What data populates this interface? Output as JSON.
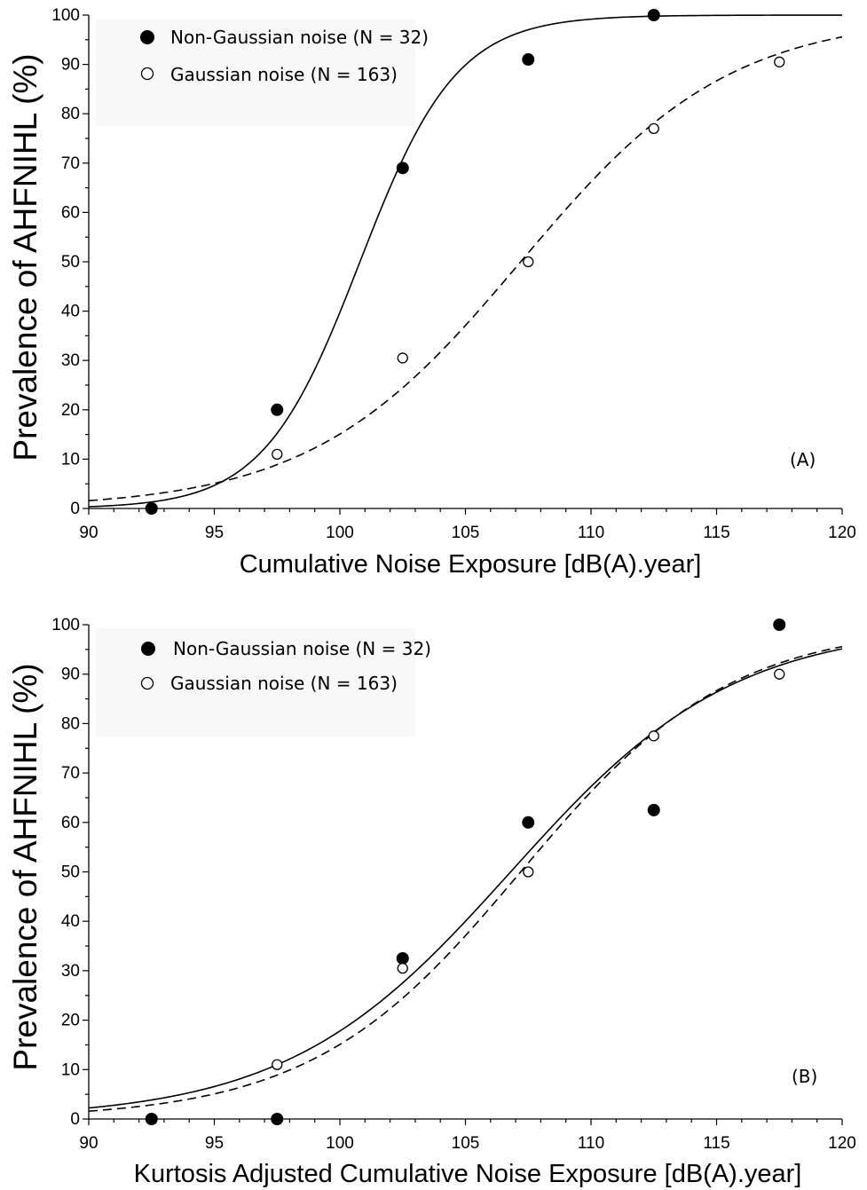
{
  "chart_data": [
    {
      "type": "scatter",
      "panel_label": "(A)",
      "xlabel": "Cumulative Noise Exposure [dB(A).year]",
      "ylabel": "Prevalence of AHFNIHL  (%)",
      "xlim": [
        90,
        120
      ],
      "ylim": [
        0,
        100
      ],
      "xticks": [
        90,
        95,
        100,
        105,
        110,
        115,
        120
      ],
      "yticks": [
        0,
        10,
        20,
        30,
        40,
        50,
        60,
        70,
        80,
        90,
        100
      ],
      "legend_position": "top-left",
      "grid": false,
      "series": [
        {
          "name": "Non-Gaussian noise (N = 32)",
          "marker": "filled-circle",
          "line_style": "solid",
          "x": [
            92.5,
            97.5,
            102.5,
            107.5,
            112.5
          ],
          "y": [
            0,
            20,
            69,
            91,
            100
          ],
          "fit": {
            "model": "logistic",
            "x50": 100.8,
            "slope": 0.52
          }
        },
        {
          "name": "Gaussian noise (N = 163)",
          "marker": "open-circle",
          "line_style": "dashed",
          "x": [
            97.5,
            102.5,
            107.5,
            112.5,
            117.5
          ],
          "y": [
            11,
            30.5,
            50,
            77,
            90.5
          ],
          "fit": {
            "model": "logistic",
            "x50": 107.2,
            "slope": 0.24
          }
        }
      ]
    },
    {
      "type": "scatter",
      "panel_label": "(B)",
      "xlabel": "Kurtosis Adjusted Cumulative Noise Exposure [dB(A).year]",
      "ylabel": "Prevalence of AHFNIHL  (%)",
      "xlim": [
        90,
        120
      ],
      "ylim": [
        0,
        100
      ],
      "xticks": [
        90,
        95,
        100,
        105,
        110,
        115,
        120
      ],
      "yticks": [
        0,
        10,
        20,
        30,
        40,
        50,
        60,
        70,
        80,
        90,
        100
      ],
      "legend_position": "top-left",
      "grid": false,
      "series": [
        {
          "name": "Non-Gaussian noise (N = 32)",
          "marker": "filled-circle",
          "line_style": "solid",
          "x": [
            92.5,
            97.5,
            102.5,
            107.5,
            112.5,
            117.5
          ],
          "y": [
            0,
            0,
            32.5,
            60,
            62.5,
            100
          ],
          "fit": {
            "model": "logistic",
            "x50": 106.8,
            "slope": 0.225
          }
        },
        {
          "name": "Gaussian noise (N = 163)",
          "marker": "open-circle",
          "line_style": "dashed",
          "x": [
            97.5,
            102.5,
            107.5,
            112.5,
            117.5
          ],
          "y": [
            11,
            30.5,
            50,
            77.5,
            90
          ],
          "fit": {
            "model": "logistic",
            "x50": 107.2,
            "slope": 0.24
          }
        }
      ]
    }
  ]
}
